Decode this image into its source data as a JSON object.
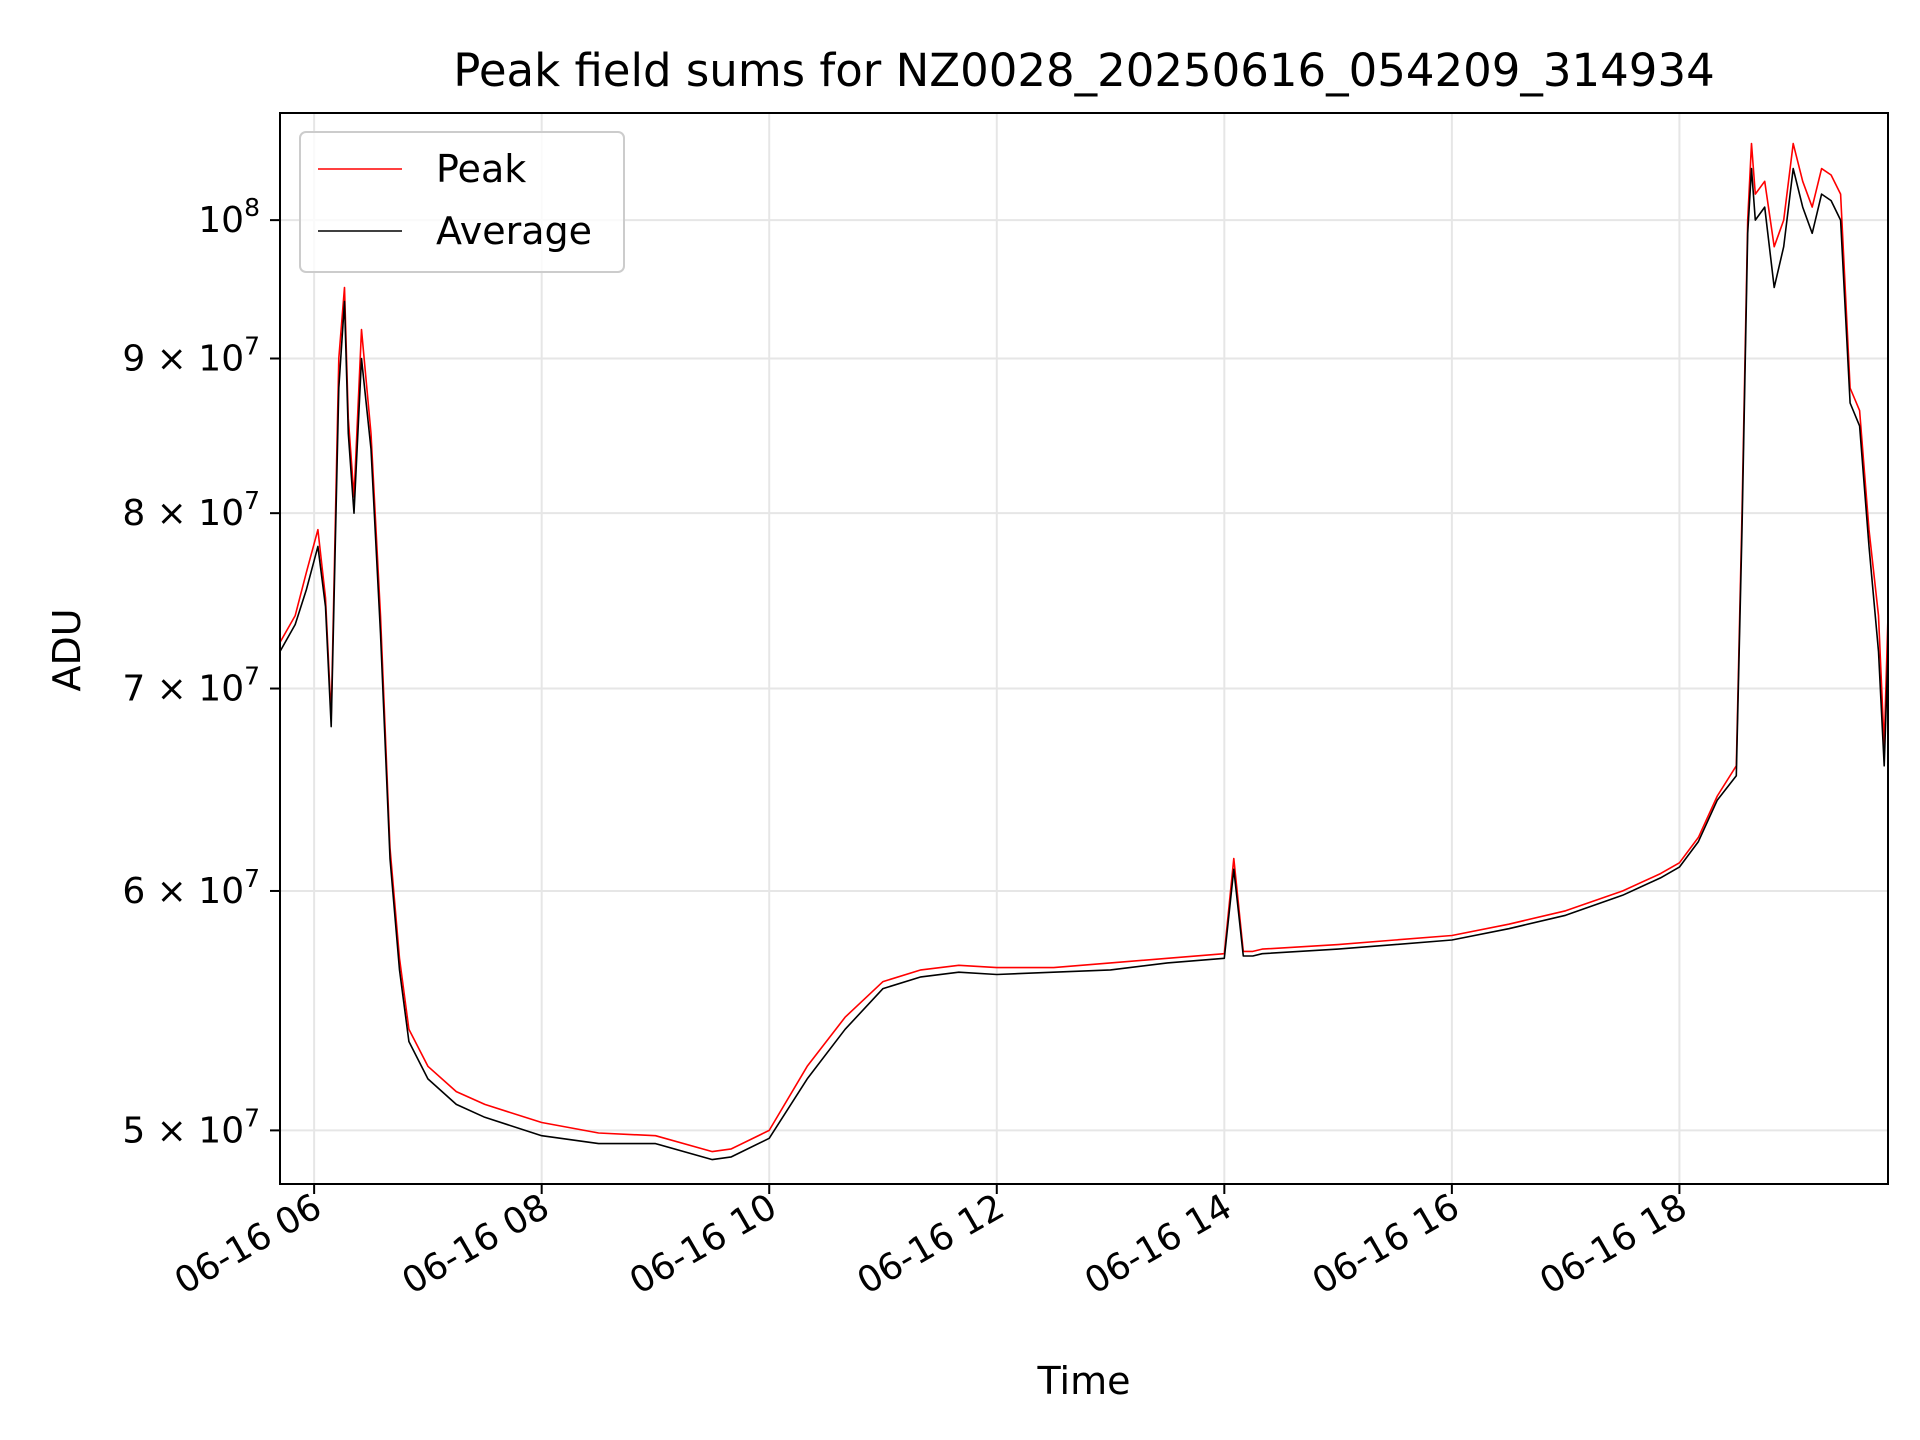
{
  "chart_data": {
    "type": "line",
    "title": "Peak field sums for NZ0028_20250616_054209_314934",
    "xlabel": "Time",
    "ylabel": "ADU",
    "y_scale": "log",
    "xlim": [
      "2025-06-16 05:42",
      "2025-06-16 19:50"
    ],
    "ylim": [
      48000000,
      108500000
    ],
    "x_ticks": [
      "06-16 06",
      "06-16 08",
      "06-16 10",
      "06-16 12",
      "06-16 14",
      "06-16 16",
      "06-16 18"
    ],
    "y_ticks": [
      {
        "value": 50000000,
        "base": "5",
        "exp": "7"
      },
      {
        "value": 60000000,
        "base": "6",
        "exp": "7"
      },
      {
        "value": 70000000,
        "base": "7",
        "exp": "7"
      },
      {
        "value": 80000000,
        "base": "8",
        "exp": "7"
      },
      {
        "value": 90000000,
        "base": "9",
        "exp": "7"
      },
      {
        "value": 100000000,
        "base": "10",
        "exp": "8"
      }
    ],
    "grid": true,
    "legend_position": "top-left",
    "series": [
      {
        "name": "Peak",
        "color": "#ff0000",
        "x": [
          "2025-06-16 05:42",
          "2025-06-16 05:50",
          "2025-06-16 05:56",
          "2025-06-16 06:02",
          "2025-06-16 06:06",
          "2025-06-16 06:09",
          "2025-06-16 06:13",
          "2025-06-16 06:16",
          "2025-06-16 06:18",
          "2025-06-16 06:21",
          "2025-06-16 06:25",
          "2025-06-16 06:30",
          "2025-06-16 06:35",
          "2025-06-16 06:40",
          "2025-06-16 06:45",
          "2025-06-16 06:50",
          "2025-06-16 07:00",
          "2025-06-16 07:15",
          "2025-06-16 07:30",
          "2025-06-16 08:00",
          "2025-06-16 08:30",
          "2025-06-16 09:00",
          "2025-06-16 09:30",
          "2025-06-16 09:40",
          "2025-06-16 10:00",
          "2025-06-16 10:20",
          "2025-06-16 10:40",
          "2025-06-16 11:00",
          "2025-06-16 11:20",
          "2025-06-16 11:40",
          "2025-06-16 12:00",
          "2025-06-16 12:30",
          "2025-06-16 13:00",
          "2025-06-16 13:30",
          "2025-06-16 14:00",
          "2025-06-16 14:05",
          "2025-06-16 14:10",
          "2025-06-16 14:15",
          "2025-06-16 14:20",
          "2025-06-16 15:00",
          "2025-06-16 15:30",
          "2025-06-16 16:00",
          "2025-06-16 16:30",
          "2025-06-16 17:00",
          "2025-06-16 17:30",
          "2025-06-16 17:50",
          "2025-06-16 18:00",
          "2025-06-16 18:10",
          "2025-06-16 18:20",
          "2025-06-16 18:30",
          "2025-06-16 18:33",
          "2025-06-16 18:36",
          "2025-06-16 18:38",
          "2025-06-16 18:40",
          "2025-06-16 18:45",
          "2025-06-16 18:50",
          "2025-06-16 18:55",
          "2025-06-16 19:00",
          "2025-06-16 19:05",
          "2025-06-16 19:10",
          "2025-06-16 19:15",
          "2025-06-16 19:20",
          "2025-06-16 19:25",
          "2025-06-16 19:30",
          "2025-06-16 19:35",
          "2025-06-16 19:40",
          "2025-06-16 19:45",
          "2025-06-16 19:48",
          "2025-06-16 19:50"
        ],
        "y": [
          72500000,
          74000000,
          76500000,
          79000000,
          75000000,
          68500000,
          90000000,
          95000000,
          86000000,
          81000000,
          92000000,
          85000000,
          74000000,
          62000000,
          57000000,
          54000000,
          52500000,
          51500000,
          51000000,
          50300000,
          49900000,
          49800000,
          49200000,
          49300000,
          50000000,
          52500000,
          54500000,
          56000000,
          56500000,
          56700000,
          56600000,
          56600000,
          56800000,
          57000000,
          57200000,
          61500000,
          57300000,
          57300000,
          57400000,
          57600000,
          57800000,
          58000000,
          58500000,
          59100000,
          60000000,
          60800000,
          61300000,
          62500000,
          64500000,
          66000000,
          80000000,
          100000000,
          106000000,
          102000000,
          103000000,
          98000000,
          100000000,
          106000000,
          103000000,
          101000000,
          104000000,
          103500000,
          102000000,
          88000000,
          86500000,
          79000000,
          74000000,
          67000000,
          74000000
        ]
      },
      {
        "name": "Average",
        "color": "#000000",
        "x": [
          "2025-06-16 05:42",
          "2025-06-16 05:50",
          "2025-06-16 05:56",
          "2025-06-16 06:02",
          "2025-06-16 06:06",
          "2025-06-16 06:09",
          "2025-06-16 06:13",
          "2025-06-16 06:16",
          "2025-06-16 06:18",
          "2025-06-16 06:21",
          "2025-06-16 06:25",
          "2025-06-16 06:30",
          "2025-06-16 06:35",
          "2025-06-16 06:40",
          "2025-06-16 06:45",
          "2025-06-16 06:50",
          "2025-06-16 07:00",
          "2025-06-16 07:15",
          "2025-06-16 07:30",
          "2025-06-16 08:00",
          "2025-06-16 08:30",
          "2025-06-16 09:00",
          "2025-06-16 09:30",
          "2025-06-16 09:40",
          "2025-06-16 10:00",
          "2025-06-16 10:20",
          "2025-06-16 10:40",
          "2025-06-16 11:00",
          "2025-06-16 11:20",
          "2025-06-16 11:40",
          "2025-06-16 12:00",
          "2025-06-16 12:30",
          "2025-06-16 13:00",
          "2025-06-16 13:30",
          "2025-06-16 14:00",
          "2025-06-16 14:05",
          "2025-06-16 14:10",
          "2025-06-16 14:15",
          "2025-06-16 14:20",
          "2025-06-16 15:00",
          "2025-06-16 15:30",
          "2025-06-16 16:00",
          "2025-06-16 16:30",
          "2025-06-16 17:00",
          "2025-06-16 17:30",
          "2025-06-16 17:50",
          "2025-06-16 18:00",
          "2025-06-16 18:10",
          "2025-06-16 18:20",
          "2025-06-16 18:30",
          "2025-06-16 18:33",
          "2025-06-16 18:36",
          "2025-06-16 18:38",
          "2025-06-16 18:40",
          "2025-06-16 18:45",
          "2025-06-16 18:50",
          "2025-06-16 18:55",
          "2025-06-16 19:00",
          "2025-06-16 19:05",
          "2025-06-16 19:10",
          "2025-06-16 19:15",
          "2025-06-16 19:20",
          "2025-06-16 19:25",
          "2025-06-16 19:30",
          "2025-06-16 19:35",
          "2025-06-16 19:40",
          "2025-06-16 19:45",
          "2025-06-16 19:48",
          "2025-06-16 19:50"
        ],
        "y": [
          72000000,
          73500000,
          75500000,
          78000000,
          74500000,
          68000000,
          88000000,
          94000000,
          85000000,
          80000000,
          90000000,
          84000000,
          73000000,
          61500000,
          56500000,
          53500000,
          52000000,
          51000000,
          50500000,
          49800000,
          49500000,
          49500000,
          48900000,
          49000000,
          49700000,
          52000000,
          54000000,
          55700000,
          56200000,
          56400000,
          56300000,
          56400000,
          56500000,
          56800000,
          57000000,
          61000000,
          57100000,
          57100000,
          57200000,
          57400000,
          57600000,
          57800000,
          58300000,
          58900000,
          59800000,
          60600000,
          61100000,
          62300000,
          64300000,
          65500000,
          79000000,
          99000000,
          104000000,
          100000000,
          101000000,
          95000000,
          98000000,
          104000000,
          101000000,
          99000000,
          102000000,
          101500000,
          100000000,
          87000000,
          85500000,
          78000000,
          72000000,
          66000000,
          72000000
        ]
      }
    ]
  }
}
